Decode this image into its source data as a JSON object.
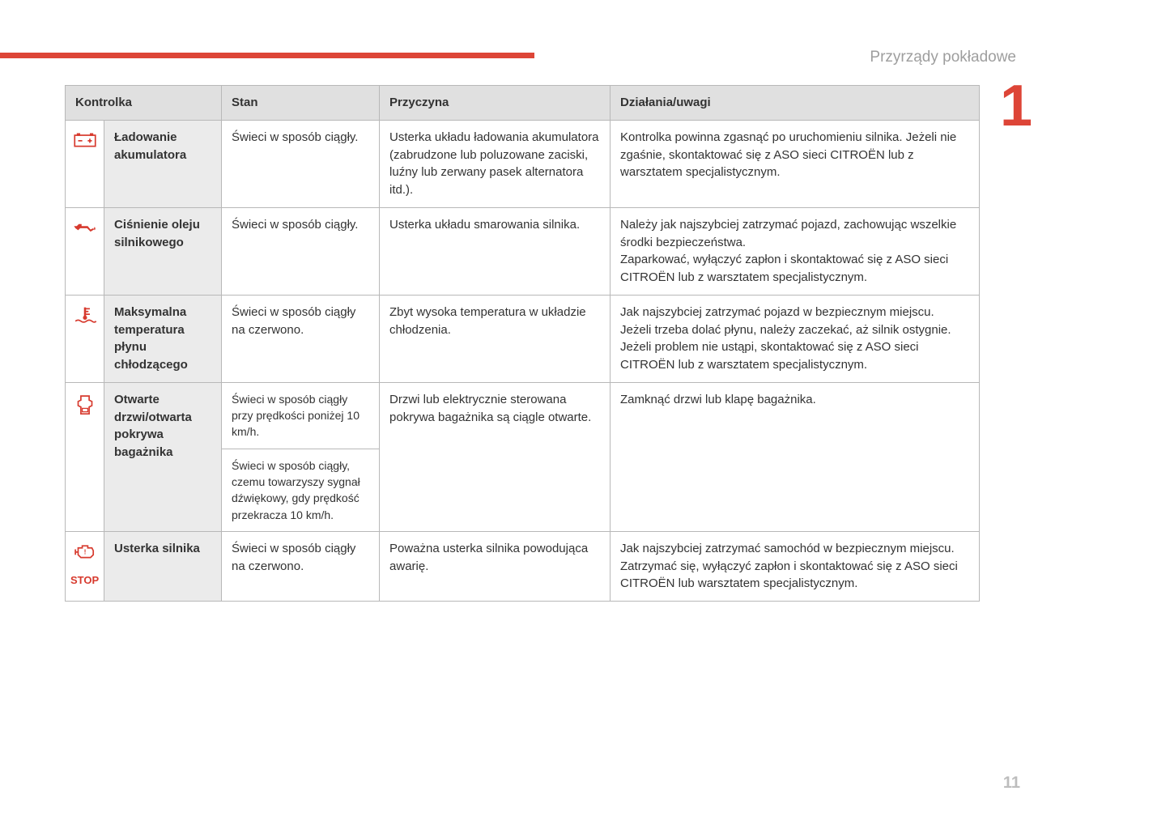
{
  "header": {
    "section_title": "Przyrządy pokładowe",
    "side_number": "1",
    "page_number": "11",
    "accent_color": "#dd4537",
    "muted_color": "#9e9e9e",
    "page_number_color": "#bdbdbd"
  },
  "table": {
    "headers": {
      "col1": "Kontrolka",
      "col2": "Stan",
      "col3": "Przyczyna",
      "col4": "Działania/uwagi"
    },
    "rows": [
      {
        "icon": "battery",
        "label": "Ładowanie akumulatora",
        "state": "Świeci w sposób ciągły.",
        "cause": "Usterka układu ładowania akumulatora (zabrudzone lub poluzowane zaciski, luźny lub zerwany pasek alternatora itd.).",
        "action": "Kontrolka powinna zgasnąć po uruchomieniu silnika. Jeżeli nie zgaśnie, skontaktować się z ASO sieci CITROËN lub z warsztatem specjalistycznym."
      },
      {
        "icon": "oil",
        "label": "Ciśnienie oleju silnikowego",
        "state": "Świeci w sposób ciągły.",
        "cause": "Usterka układu smarowania silnika.",
        "action": "Należy jak najszybciej zatrzymać pojazd, zachowując wszelkie środki bezpieczeństwa.\nZaparkować, wyłączyć zapłon i skontaktować się z ASO sieci CITROËN lub z warsztatem specjalistycznym."
      },
      {
        "icon": "temp",
        "label": "Maksymalna temperatura płynu chłodzącego",
        "state": "Świeci w sposób ciągły na czerwono.",
        "cause": "Zbyt wysoka temperatura w układzie chłodzenia.",
        "action": "Jak najszybciej zatrzymać pojazd w bezpiecznym miejscu.\nJeżeli trzeba dolać płynu, należy zaczekać, aż silnik ostygnie.\nJeżeli problem nie ustąpi, skontaktować się z ASO sieci CITROËN lub z warsztatem specjalistycznym."
      },
      {
        "icon": "door",
        "label": "Otwarte drzwi/otwarta pokrywa bagażnika",
        "state": "Świeci w sposób ciągły przy prędkości poniżej 10 km/h.",
        "state2": "Świeci w sposób ciągły, czemu towarzyszy sygnał dźwiękowy, gdy prędkość przekracza 10 km/h.",
        "cause": "Drzwi lub elektrycznie sterowana pokrywa bagażnika są ciągle otwarte.",
        "action": "Zamknąć drzwi lub klapę bagażnika."
      },
      {
        "icon": "engine-stop",
        "label": "Usterka silnika",
        "state": "Świeci w sposób ciągły na czerwono.",
        "cause": "Poważna usterka silnika powodująca awarię.",
        "action": "Jak najszybciej zatrzymać samochód w bezpiecznym miejscu.\nZatrzymać się, wyłączyć zapłon i skontaktować się z ASO sieci CITROËN lub warsztatem specjalistycznym.",
        "stop_label": "STOP"
      }
    ]
  }
}
